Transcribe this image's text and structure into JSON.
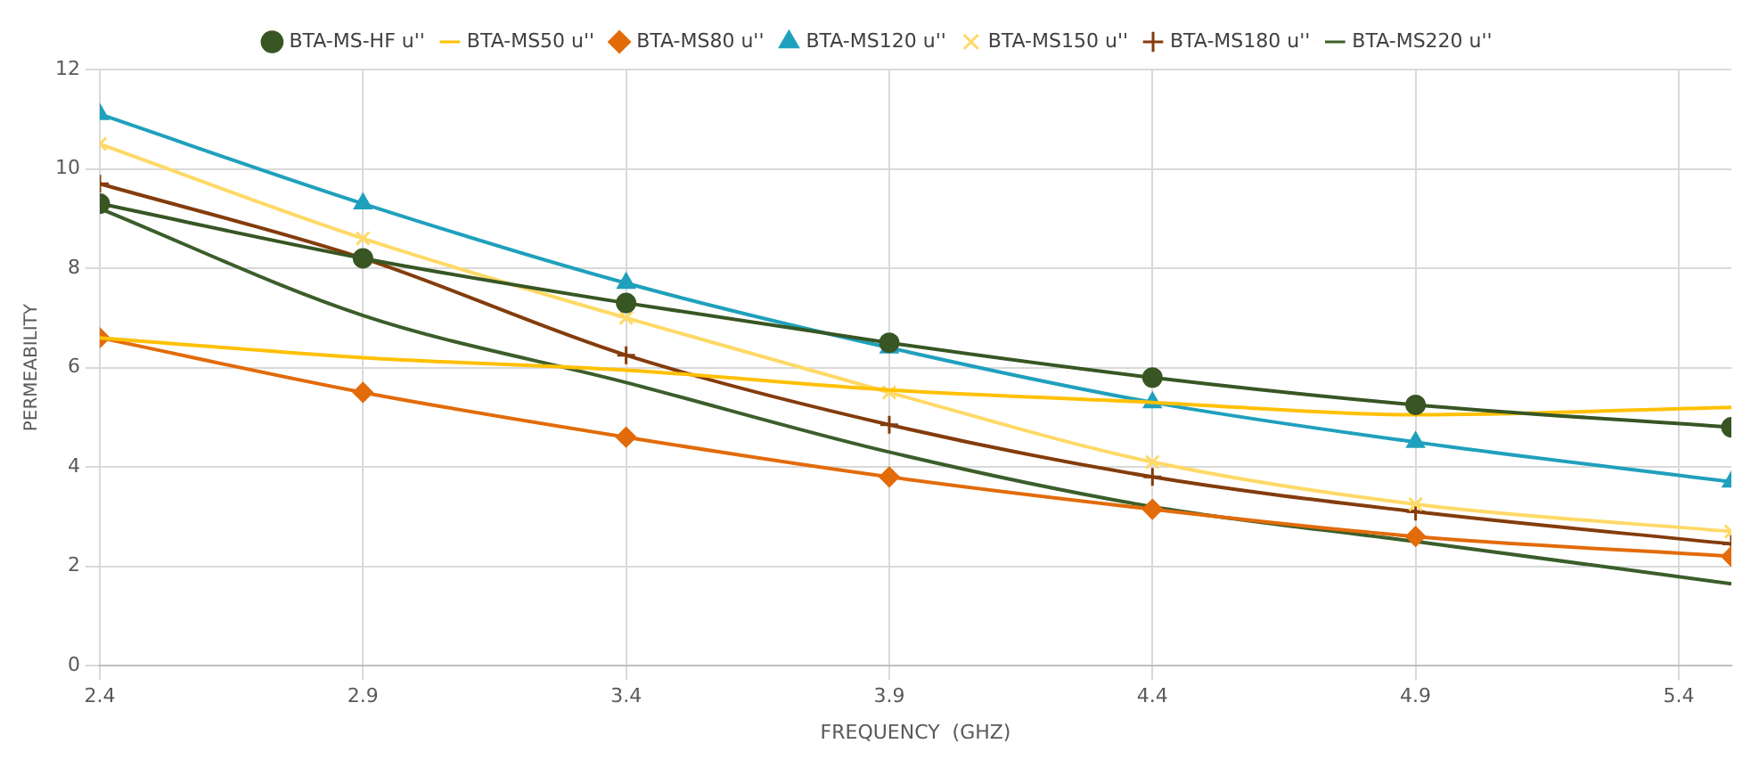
{
  "chart_data": {
    "type": "line",
    "xlabel": "FREQUENCY  (GHZ)",
    "ylabel": "PERMEABILITY",
    "xlim": [
      2.4,
      5.5
    ],
    "xticks": [
      2.4,
      2.9,
      3.4,
      3.9,
      4.4,
      4.9,
      5.4
    ],
    "ylim": [
      0,
      12
    ],
    "yticks": [
      0,
      2,
      4,
      6,
      8,
      10,
      12
    ],
    "grid": true,
    "legend": "top",
    "x": [
      2.4,
      2.9,
      3.4,
      3.9,
      4.4,
      4.9,
      5.5
    ],
    "series": [
      {
        "name": "BTA-MS-HF u''",
        "color": "#375623",
        "marker": "circle",
        "values": [
          9.3,
          8.2,
          7.3,
          6.5,
          5.8,
          5.25,
          4.8
        ]
      },
      {
        "name": "BTA-MS50 u''",
        "color": "#ffc000",
        "marker": "none",
        "values": [
          6.6,
          6.2,
          5.95,
          5.55,
          5.3,
          5.05,
          5.2
        ]
      },
      {
        "name": "BTA-MS80 u''",
        "color": "#e26b0a",
        "marker": "diamond",
        "values": [
          6.6,
          5.5,
          4.6,
          3.8,
          3.15,
          2.6,
          2.2
        ]
      },
      {
        "name": "BTA-MS120 u''",
        "color": "#1fa0bd",
        "marker": "triangle",
        "values": [
          11.1,
          9.3,
          7.7,
          6.4,
          5.3,
          4.5,
          3.7
        ]
      },
      {
        "name": "BTA-MS150 u''",
        "color": "#ffd966",
        "marker": "cross",
        "values": [
          10.5,
          8.6,
          7.0,
          5.5,
          4.1,
          3.25,
          2.7
        ]
      },
      {
        "name": "BTA-MS180 u''",
        "color": "#843c0c",
        "marker": "plus",
        "values": [
          9.7,
          8.2,
          6.25,
          4.85,
          3.8,
          3.1,
          2.45
        ]
      },
      {
        "name": "BTA-MS220 u''",
        "color": "#3b5e2b",
        "marker": "none",
        "values": [
          9.2,
          7.05,
          5.7,
          4.3,
          3.2,
          2.5,
          1.65
        ]
      }
    ]
  }
}
